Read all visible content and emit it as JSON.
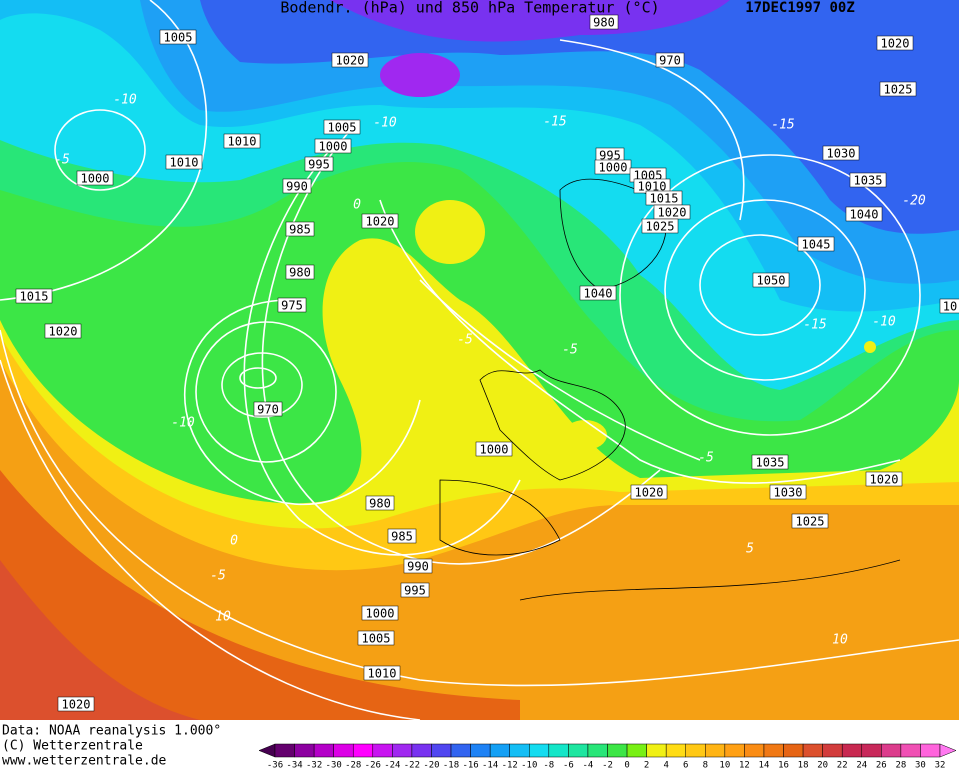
{
  "header": {
    "title": "Bodendr. (hPa) und 850 hPa Temperatur (°C)",
    "date": "17DEC1997 00Z"
  },
  "footer": {
    "lines": [
      "Data: NOAA reanalysis 1.000°",
      "(C) Wetterzentrale",
      "www.wetterzentrale.de"
    ]
  },
  "colorbar": {
    "ticks": [
      -36,
      -34,
      -32,
      -30,
      -28,
      -26,
      -24,
      -22,
      -20,
      -18,
      -16,
      -14,
      -12,
      -10,
      -8,
      -6,
      -4,
      -2,
      0,
      2,
      4,
      6,
      8,
      10,
      12,
      14,
      16,
      18,
      20,
      22,
      24,
      26,
      28,
      30,
      32
    ],
    "colors": [
      "#460050",
      "#64006e",
      "#8c00a0",
      "#b400c8",
      "#dc00e6",
      "#ff00ff",
      "#c814f0",
      "#a028f0",
      "#7832f0",
      "#5046f0",
      "#3264f0",
      "#1e82f5",
      "#14a0f5",
      "#14bef5",
      "#14dcf0",
      "#14e6c8",
      "#1ee6a0",
      "#28e678",
      "#3ce646",
      "#78f014",
      "#f0f014",
      "#ffdc14",
      "#ffc814",
      "#ffb414",
      "#ffa014",
      "#fa8c14",
      "#f07814",
      "#e66414",
      "#dc502d",
      "#d23c3c",
      "#c82850",
      "#c8285a",
      "#dc3c8c",
      "#f050b4",
      "#ff64dc",
      "#ff78f0"
    ]
  },
  "isobar_labels": [
    "1005",
    "1020",
    "980",
    "970",
    "1020",
    "1025",
    "1010",
    "1010",
    "1005",
    "1000",
    "995",
    "990",
    "985",
    "980",
    "975",
    "970",
    "1000",
    "1015",
    "1020",
    "1020",
    "995",
    "1000",
    "1005",
    "1010",
    "1015",
    "1020",
    "1025",
    "1040",
    "1030",
    "1035",
    "1040",
    "1045",
    "1050",
    "1000",
    "1035",
    "1030",
    "1025",
    "1020",
    "1020",
    "980",
    "985",
    "990",
    "995",
    "1000",
    "1005",
    "1010",
    "1020",
    "10"
  ],
  "temperature_labels": [
    "-10",
    "-5",
    "-10",
    "0",
    "-15",
    "-15",
    "-20",
    "-5",
    "-5",
    "-15",
    "-10",
    "-10",
    "-5",
    "5",
    "0",
    "-5",
    "10",
    "10"
  ]
}
